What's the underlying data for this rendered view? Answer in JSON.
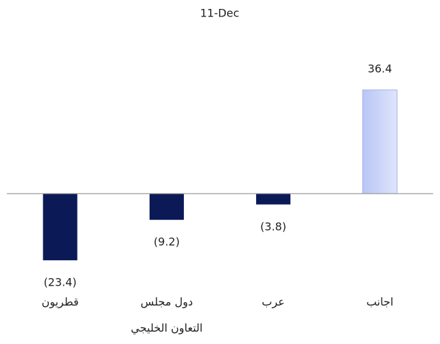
{
  "chart_data": {
    "type": "bar",
    "title": "11-Dec",
    "categories": [
      "قطريون",
      "دول مجلس التعاون الخليجي",
      "عرب",
      "اجانب"
    ],
    "values": [
      -23.4,
      -9.2,
      -3.8,
      36.4
    ],
    "value_labels": [
      "(23.4)",
      "(9.2)",
      "(3.8)",
      "36.4"
    ],
    "colors": [
      "#0b1a57",
      "#0b1a57",
      "#0b1a57",
      "#c9d3f8"
    ],
    "ylim": [
      -40,
      50
    ]
  }
}
